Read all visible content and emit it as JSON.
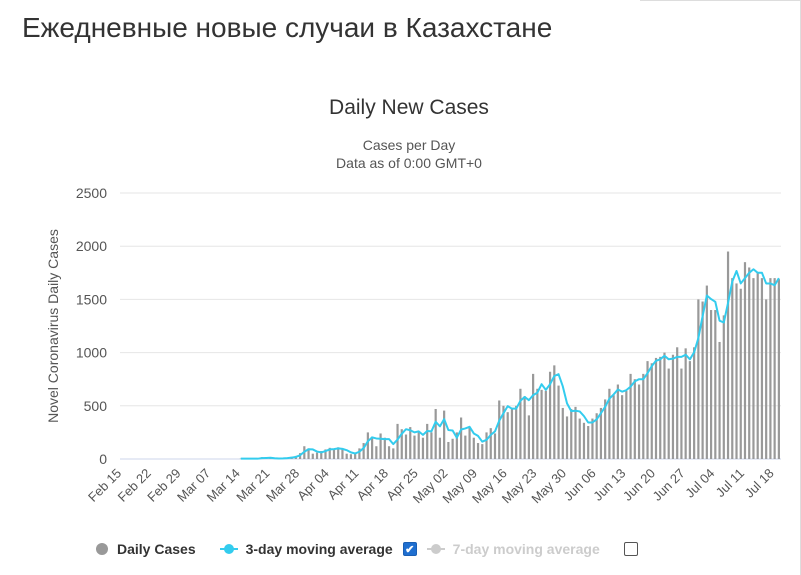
{
  "page": {
    "heading": "Ежедневные новые случаи в Казахстане"
  },
  "colors": {
    "bars": "#999999",
    "moving_avg_3": "#33ccee",
    "moving_avg_7_disabled": "#cccccc",
    "checkbox": "#1f6fd0"
  },
  "legend": {
    "items": [
      {
        "label": "Daily Cases",
        "icon": "filled-circle-icon",
        "visible": true
      },
      {
        "label": "3-day moving average",
        "icon": "line-marker-icon",
        "visible": true,
        "checkbox": true
      },
      {
        "label": "7-day moving average",
        "icon": "line-marker-icon",
        "visible": false,
        "checkbox": false
      }
    ]
  },
  "chart_data": {
    "type": "bar",
    "title": "Daily New Cases",
    "subtitle_lines": [
      "Cases per Day",
      "Data as of 0:00 GMT+0"
    ],
    "ylabel": "Novel Coronavirus Daily Cases",
    "xlabel": "",
    "ylim": [
      0,
      2500
    ],
    "yticks": [
      0,
      500,
      1000,
      1500,
      2000,
      2500
    ],
    "grid": true,
    "legend_position": "bottom",
    "x_start": "Feb 15",
    "x_end": "Jul 24",
    "xtick_labels": [
      "Feb 15",
      "Feb 22",
      "Feb 29",
      "Mar 07",
      "Mar 14",
      "Mar 21",
      "Mar 28",
      "Apr 04",
      "Apr 11",
      "Apr 18",
      "Apr 25",
      "May 02",
      "May 09",
      "May 16",
      "May 23",
      "May 30",
      "Jun 06",
      "Jun 13",
      "Jun 20",
      "Jun 27",
      "Jul 04",
      "Jul 11",
      "Jul 18"
    ],
    "series": [
      {
        "name": "Daily Cases",
        "kind": "bar",
        "values": [
          0,
          0,
          0,
          0,
          0,
          0,
          0,
          0,
          0,
          0,
          0,
          0,
          0,
          0,
          0,
          0,
          0,
          0,
          0,
          0,
          0,
          0,
          0,
          0,
          0,
          0,
          0,
          0,
          3,
          5,
          1,
          4,
          3,
          17,
          10,
          9,
          2,
          5,
          11,
          8,
          21,
          29,
          55,
          120,
          100,
          50,
          60,
          75,
          90,
          105,
          85,
          110,
          90,
          50,
          45,
          60,
          100,
          150,
          250,
          210,
          120,
          240,
          200,
          120,
          100,
          330,
          280,
          230,
          300,
          220,
          260,
          200,
          330,
          250,
          470,
          200,
          455,
          160,
          190,
          250,
          390,
          220,
          300,
          200,
          150,
          140,
          250,
          290,
          240,
          550,
          500,
          440,
          480,
          500,
          660,
          590,
          410,
          800,
          660,
          650,
          640,
          820,
          880,
          690,
          480,
          400,
          470,
          490,
          380,
          340,
          310,
          380,
          430,
          480,
          560,
          660,
          600,
          700,
          600,
          640,
          800,
          750,
          700,
          800,
          920,
          900,
          950,
          960,
          1000,
          850,
          980,
          1050,
          850,
          1040,
          920,
          1050,
          1500,
          1480,
          1630,
          1400,
          1400,
          1100,
          1350,
          1950,
          1700,
          1650,
          1600,
          1850,
          1800,
          1700,
          1750,
          1700,
          1500,
          1700,
          1700,
          1690
        ]
      },
      {
        "name": "3-day moving average",
        "kind": "line",
        "values": [
          null,
          null,
          null,
          null,
          null,
          null,
          null,
          null,
          null,
          null,
          null,
          null,
          null,
          null,
          null,
          null,
          null,
          null,
          null,
          null,
          null,
          null,
          null,
          null,
          null,
          null,
          null,
          null,
          3,
          4,
          3,
          3,
          3,
          8,
          10,
          12,
          7,
          5,
          6,
          8,
          13,
          19,
          35,
          68,
          92,
          90,
          70,
          62,
          75,
          90,
          93,
          100,
          95,
          83,
          62,
          52,
          68,
          103,
          167,
          203,
          193,
          190,
          187,
          187,
          140,
          183,
          237,
          280,
          270,
          250,
          260,
          227,
          263,
          260,
          350,
          307,
          375,
          272,
          268,
          200,
          277,
          287,
          303,
          240,
          217,
          163,
          180,
          227,
          260,
          360,
          430,
          497,
          473,
          473,
          547,
          583,
          553,
          600,
          623,
          703,
          650,
          703,
          780,
          797,
          683,
          523,
          450,
          453,
          447,
          403,
          343,
          343,
          373,
          430,
          490,
          567,
          607,
          653,
          633,
          647,
          680,
          730,
          750,
          750,
          807,
          873,
          923,
          937,
          970,
          937,
          943,
          960,
          960,
          980,
          937,
          1003,
          1137,
          1343,
          1537,
          1503,
          1477,
          1300,
          1283,
          1467,
          1667,
          1767,
          1650,
          1700,
          1750,
          1783,
          1750,
          1750,
          1650,
          1650,
          1633,
          1700
        ]
      }
    ]
  }
}
